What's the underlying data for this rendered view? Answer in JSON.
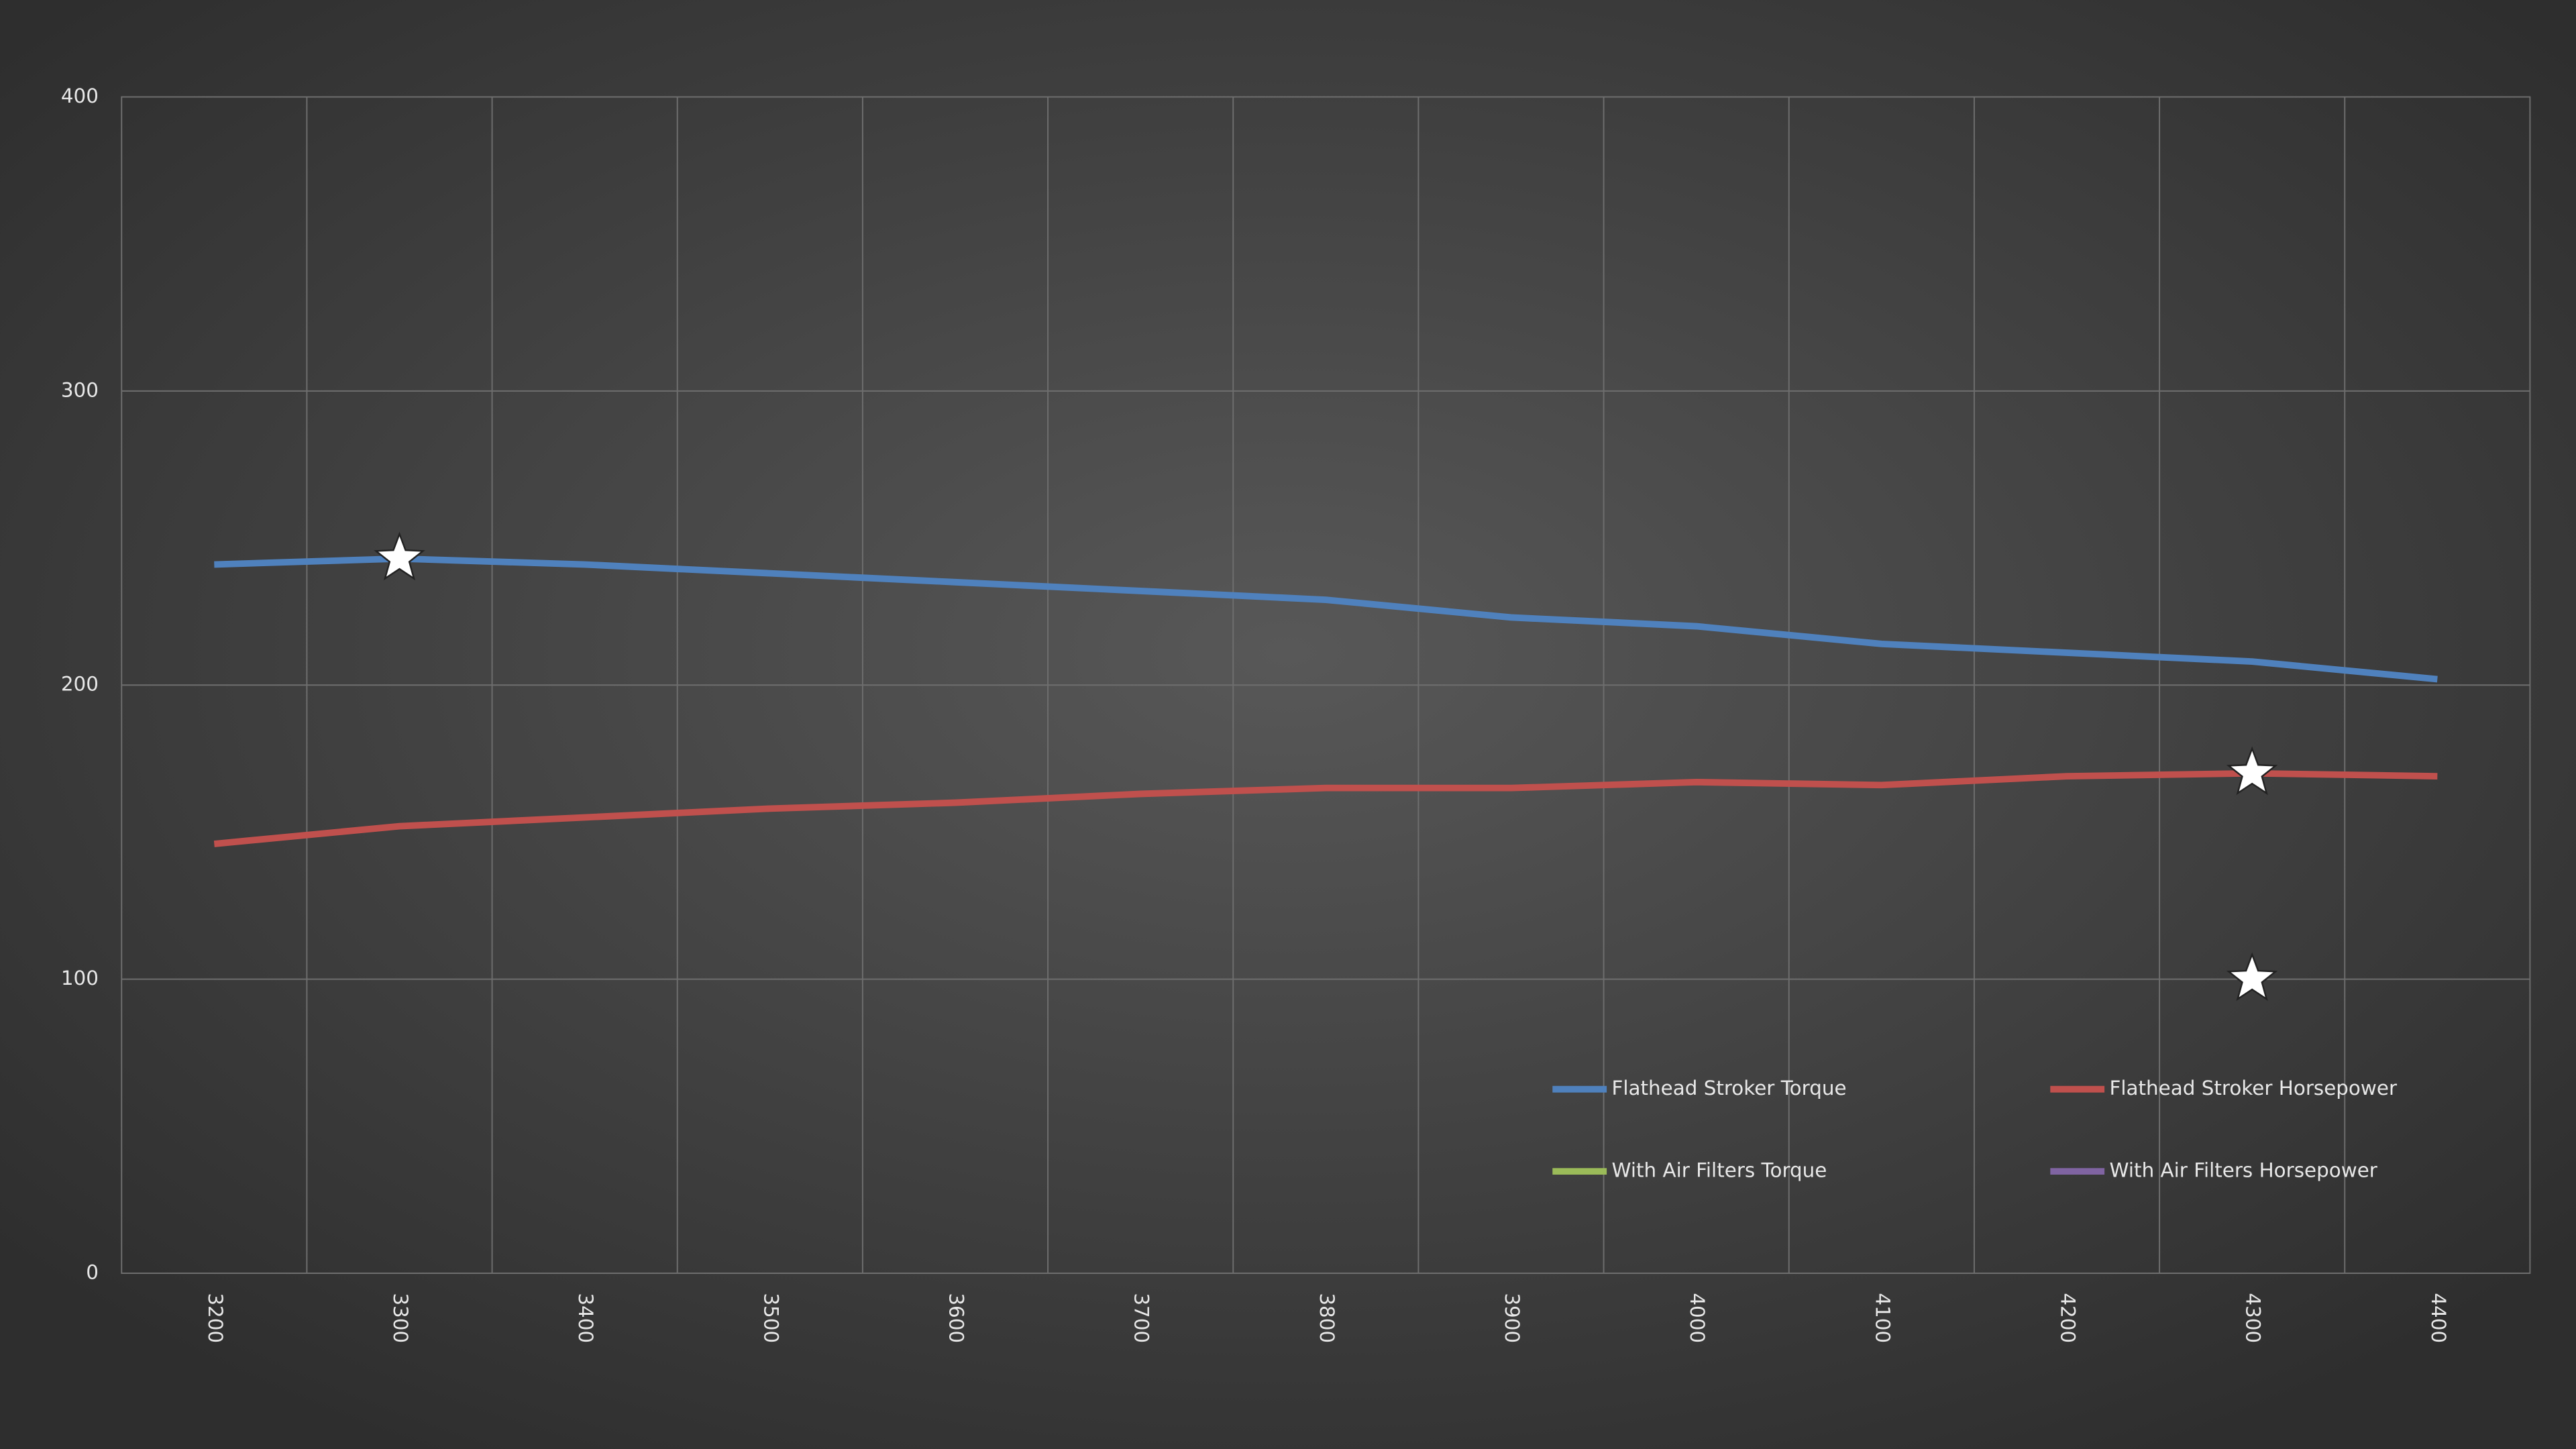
{
  "chart_data": {
    "type": "line",
    "categories": [
      "3200",
      "3300",
      "3400",
      "3500",
      "3600",
      "3700",
      "3800",
      "3900",
      "4000",
      "4100",
      "4200",
      "4300",
      "4400"
    ],
    "series": [
      {
        "name": "Flathead Stroker Torque",
        "color": "#4f81bd",
        "values": [
          241,
          243,
          241,
          238,
          235,
          232,
          229,
          223,
          220,
          214,
          211,
          208,
          202
        ]
      },
      {
        "name": "Flathead Stroker Horsepower",
        "color": "#c0504d",
        "values": [
          146,
          152,
          155,
          158,
          160,
          163,
          165,
          165,
          167,
          166,
          169,
          170,
          169
        ]
      },
      {
        "name": "With  Air Filters Torque",
        "color": "#9bbb59",
        "values": [
          null,
          null,
          null,
          null,
          null,
          null,
          null,
          null,
          null,
          null,
          null,
          null,
          null
        ]
      },
      {
        "name": "With  Air Filters Horsepower",
        "color": "#8064a2",
        "values": [
          null,
          null,
          null,
          null,
          null,
          null,
          null,
          null,
          null,
          null,
          null,
          null,
          null
        ]
      }
    ],
    "stars": [
      {
        "category": "3300",
        "value": 243
      },
      {
        "category": "4300",
        "value": 170
      },
      {
        "category": "4300",
        "value": 100
      }
    ],
    "ylim": [
      0,
      400
    ],
    "yticks": [
      0,
      100,
      200,
      300,
      400
    ],
    "grid": true
  }
}
